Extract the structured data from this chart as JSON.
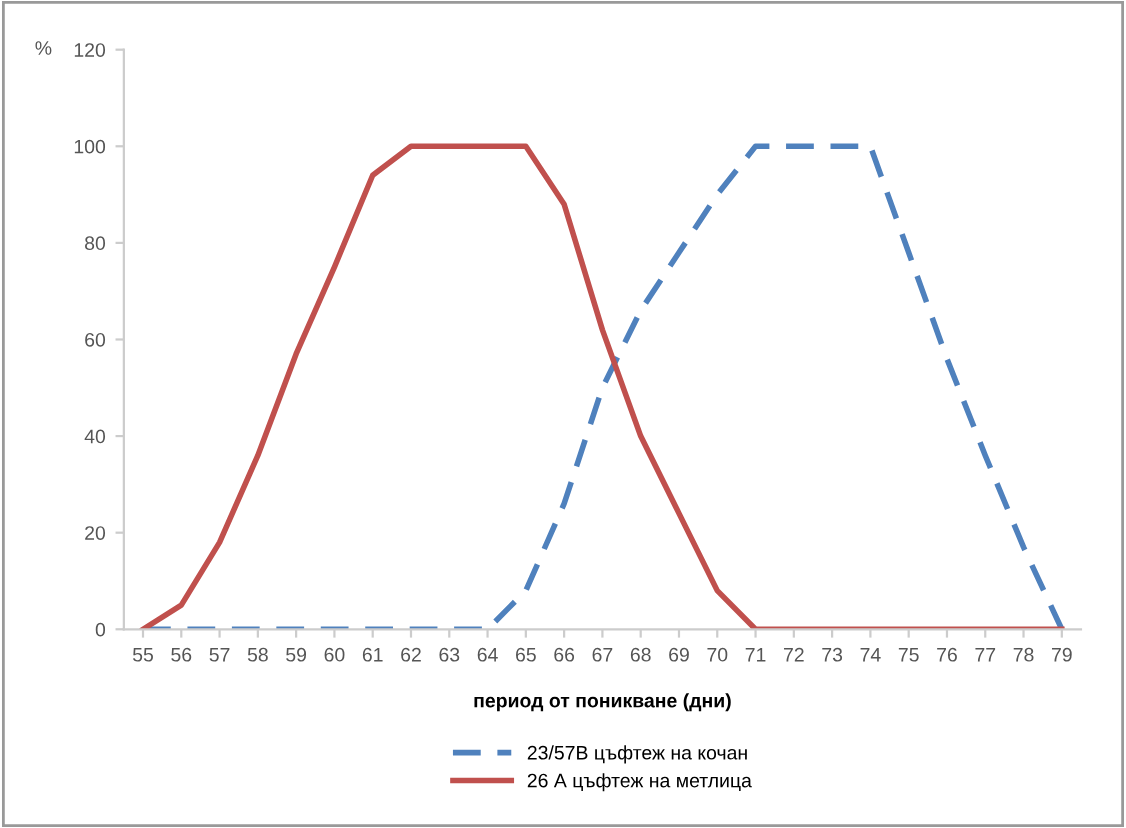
{
  "chart_data": {
    "type": "line",
    "xlabel": "период от поникване (дни)",
    "ylabel": "%",
    "categories": [
      "55",
      "56",
      "57",
      "58",
      "59",
      "60",
      "61",
      "62",
      "63",
      "64",
      "65",
      "66",
      "67",
      "68",
      "69",
      "70",
      "71",
      "72",
      "73",
      "74",
      "75",
      "76",
      "77",
      "78",
      "79"
    ],
    "series": [
      {
        "name": "23/57B цъфтеж на кочан",
        "color": "#4f81bd",
        "line_style": "dashed",
        "values": [
          0,
          0,
          0,
          0,
          0,
          0,
          0,
          0,
          0,
          0,
          8,
          26,
          50,
          66,
          78,
          90,
          100,
          100,
          100,
          100,
          78,
          56,
          36,
          17,
          0
        ]
      },
      {
        "name": "26 А цъфтеж на метлица",
        "color": "#c0504d",
        "line_style": "solid",
        "values": [
          0,
          5,
          18,
          36,
          57,
          75,
          94,
          100,
          100,
          100,
          100,
          88,
          62,
          40,
          24,
          8,
          0,
          0,
          0,
          0,
          0,
          0,
          0,
          0,
          0
        ]
      }
    ],
    "ylim": [
      0,
      120
    ],
    "yticks": [
      0,
      20,
      40,
      60,
      80,
      100,
      120
    ],
    "grid": false,
    "legend": "bottom",
    "marker": "none"
  }
}
